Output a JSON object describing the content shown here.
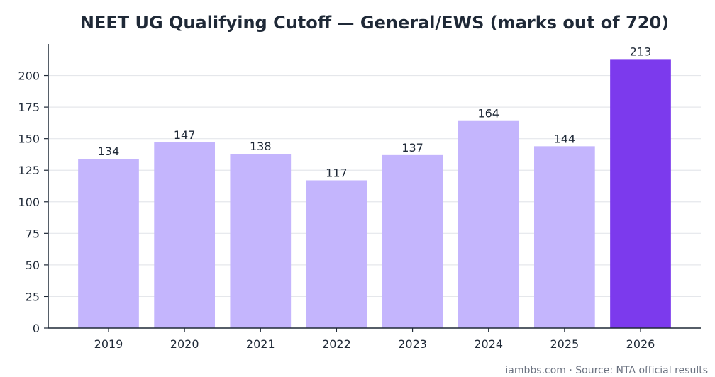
{
  "chart_data": {
    "type": "bar",
    "title": "NEET UG Qualifying Cutoff — General/EWS (marks out of 720)",
    "xlabel": "",
    "ylabel": "",
    "categories": [
      "2019",
      "2020",
      "2021",
      "2022",
      "2023",
      "2024",
      "2025",
      "2026"
    ],
    "values": [
      134,
      147,
      138,
      117,
      137,
      164,
      144,
      213
    ],
    "ylim": [
      0,
      225
    ],
    "yticks": [
      0,
      25,
      50,
      75,
      100,
      125,
      150,
      175,
      200
    ],
    "grid": true,
    "legend": "none",
    "colors": {
      "default_bar": "#c4b5fd",
      "highlight_bar": "#7c3aed",
      "axis": "#1f2937",
      "grid": "#e5e7eb"
    },
    "highlight_index": 7
  },
  "footer": {
    "source": "iambbs.com · Source: NTA official results"
  }
}
